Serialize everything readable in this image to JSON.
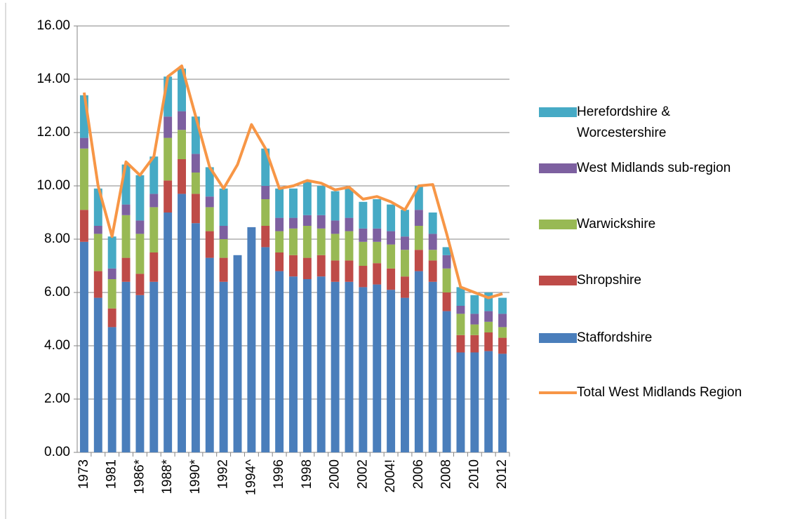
{
  "chart_data": {
    "type": "bar",
    "stacked": true,
    "grid": true,
    "categories": [
      "1973",
      null,
      "1981",
      null,
      "1986*",
      null,
      "1988*",
      null,
      "1990*",
      null,
      "1992",
      null,
      "1994^",
      null,
      "1996",
      null,
      "1998",
      null,
      "2000",
      null,
      "2002",
      null,
      "2004!",
      null,
      "2006",
      null,
      "2008",
      null,
      "2010",
      null,
      "2012"
    ],
    "ylim": [
      0,
      16
    ],
    "yticks": [
      {
        "value": 0,
        "label": "0.00"
      },
      {
        "value": 2,
        "label": "2.00"
      },
      {
        "value": 4,
        "label": "4.00"
      },
      {
        "value": 6,
        "label": "6.00"
      },
      {
        "value": 8,
        "label": "8.00"
      },
      {
        "value": 10,
        "label": "10.00"
      },
      {
        "value": 12,
        "label": "12.00"
      },
      {
        "value": 14,
        "label": "14.00"
      },
      {
        "value": 16,
        "label": "16.00"
      }
    ],
    "series": [
      {
        "name": "Staffordshire",
        "type": "bar",
        "color": "#4a7ebb",
        "values": [
          7.9,
          5.8,
          4.7,
          6.4,
          5.9,
          6.4,
          9.0,
          9.7,
          8.6,
          7.3,
          6.4,
          7.4,
          8.45,
          7.7,
          6.8,
          6.6,
          6.5,
          6.6,
          6.4,
          6.4,
          6.2,
          6.3,
          6.1,
          5.8,
          6.8,
          6.4,
          5.3,
          3.75,
          3.75,
          3.8,
          3.7
        ]
      },
      {
        "name": "Shropshire",
        "type": "bar",
        "color": "#be4b48",
        "values": [
          1.2,
          1.0,
          0.7,
          0.9,
          0.8,
          1.1,
          1.2,
          1.3,
          1.1,
          1.0,
          0.9,
          null,
          null,
          0.8,
          0.7,
          0.8,
          0.8,
          0.8,
          0.8,
          0.8,
          0.8,
          0.8,
          0.8,
          0.8,
          0.8,
          0.8,
          0.7,
          0.65,
          0.65,
          0.7,
          0.6
        ]
      },
      {
        "name": "Warwickshire",
        "type": "bar",
        "color": "#98b954",
        "values": [
          2.3,
          1.4,
          1.1,
          1.6,
          1.5,
          1.7,
          1.6,
          1.1,
          0.8,
          0.9,
          0.7,
          null,
          null,
          1.0,
          0.8,
          1.0,
          1.2,
          1.0,
          1.0,
          1.1,
          0.9,
          0.8,
          0.9,
          1.0,
          0.9,
          0.4,
          0.9,
          0.8,
          0.4,
          0.4,
          0.4
        ]
      },
      {
        "name": "West Midlands sub-region",
        "type": "bar",
        "color": "#7d60a0",
        "values": [
          0.4,
          0.3,
          0.4,
          0.4,
          0.5,
          0.5,
          0.8,
          0.7,
          0.7,
          0.4,
          0.5,
          null,
          null,
          0.5,
          0.5,
          0.4,
          0.4,
          0.5,
          0.5,
          0.5,
          0.5,
          0.5,
          0.5,
          0.5,
          0.6,
          0.6,
          0.5,
          0.3,
          0.4,
          0.4,
          0.5
        ]
      },
      {
        "name": "Herefordshire & Worcestershire",
        "type": "bar",
        "color": "#46aac5",
        "values": [
          1.6,
          1.4,
          1.2,
          1.5,
          1.7,
          1.4,
          1.5,
          1.6,
          1.4,
          1.1,
          1.4,
          null,
          null,
          1.4,
          1.1,
          1.1,
          1.3,
          1.1,
          1.1,
          1.1,
          1.0,
          1.1,
          1.0,
          1.0,
          0.9,
          0.8,
          0.3,
          0.7,
          0.7,
          0.7,
          0.6
        ]
      },
      {
        "name": "Total West Midlands Region",
        "type": "line",
        "color": "#f79646",
        "values": [
          13.5,
          10.0,
          8.1,
          10.9,
          10.4,
          11.1,
          14.1,
          14.5,
          12.6,
          10.7,
          9.9,
          10.8,
          12.3,
          11.4,
          9.9,
          10.0,
          10.2,
          10.1,
          9.85,
          9.95,
          9.5,
          9.6,
          9.4,
          9.1,
          10.0,
          10.05,
          8.2,
          6.2,
          6.0,
          5.8,
          5.95
        ]
      }
    ]
  }
}
